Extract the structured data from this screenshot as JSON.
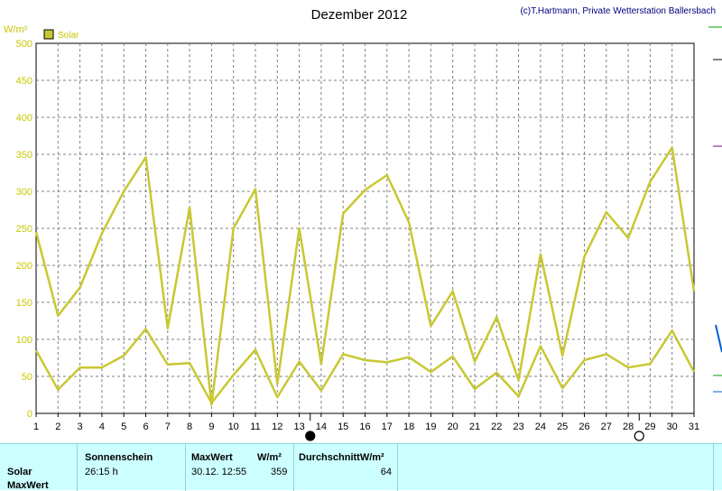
{
  "chart_data": {
    "type": "line",
    "title": "Dezember 2012",
    "credit": "(c)T.Hartmann, Private Wetterstation Ballersbach",
    "ylabel": "W/m²",
    "ylim": [
      0,
      500
    ],
    "yticks": [
      0,
      50,
      100,
      150,
      200,
      250,
      300,
      350,
      400,
      450,
      500
    ],
    "x": [
      1,
      2,
      3,
      4,
      5,
      6,
      7,
      8,
      9,
      10,
      11,
      12,
      13,
      14,
      15,
      16,
      17,
      18,
      19,
      20,
      21,
      22,
      23,
      24,
      25,
      26,
      27,
      28,
      29,
      30,
      31
    ],
    "xlim": [
      1,
      31
    ],
    "grid": true,
    "legend": {
      "label": "Solar",
      "placement": "top-left"
    },
    "series": [
      {
        "values": [
          245,
          132,
          170,
          243,
          300,
          346,
          115,
          278,
          12,
          250,
          303,
          40,
          250,
          67,
          270,
          302,
          322,
          258,
          118,
          165,
          70,
          130,
          45,
          215,
          78,
          212,
          272,
          237,
          313,
          359,
          165
        ],
        "color": "#c8c832"
      },
      {
        "values": [
          85,
          32,
          62,
          62,
          78,
          114,
          66,
          68,
          14,
          52,
          86,
          22,
          70,
          31,
          80,
          72,
          69,
          76,
          56,
          77,
          33,
          55,
          23,
          91,
          34,
          72,
          80,
          62,
          67,
          112,
          56
        ],
        "color": "#c8c832"
      }
    ],
    "moon_phases": [
      {
        "day": 13.5,
        "phase": "new"
      },
      {
        "day": 28.5,
        "phase": "full"
      }
    ],
    "colors": {
      "plot_bg": "#ffffff",
      "grid": "#808080",
      "axis_text": "#c8c800",
      "series": "#c8c832"
    }
  },
  "stats": {
    "row_labels": [
      "Solar",
      "MaxWert"
    ],
    "col_sonnenschein": "Sonnenschein",
    "col_maxwert": "MaxWert",
    "col_maxwert_unit": "W/m²",
    "col_durchschnitt": "DurchschnittW/m²",
    "sonnenschein_value": "26:15 h",
    "maxwert_date": "30.12.  12:55",
    "maxwert_value": "359",
    "durchschnitt_value": "64"
  }
}
